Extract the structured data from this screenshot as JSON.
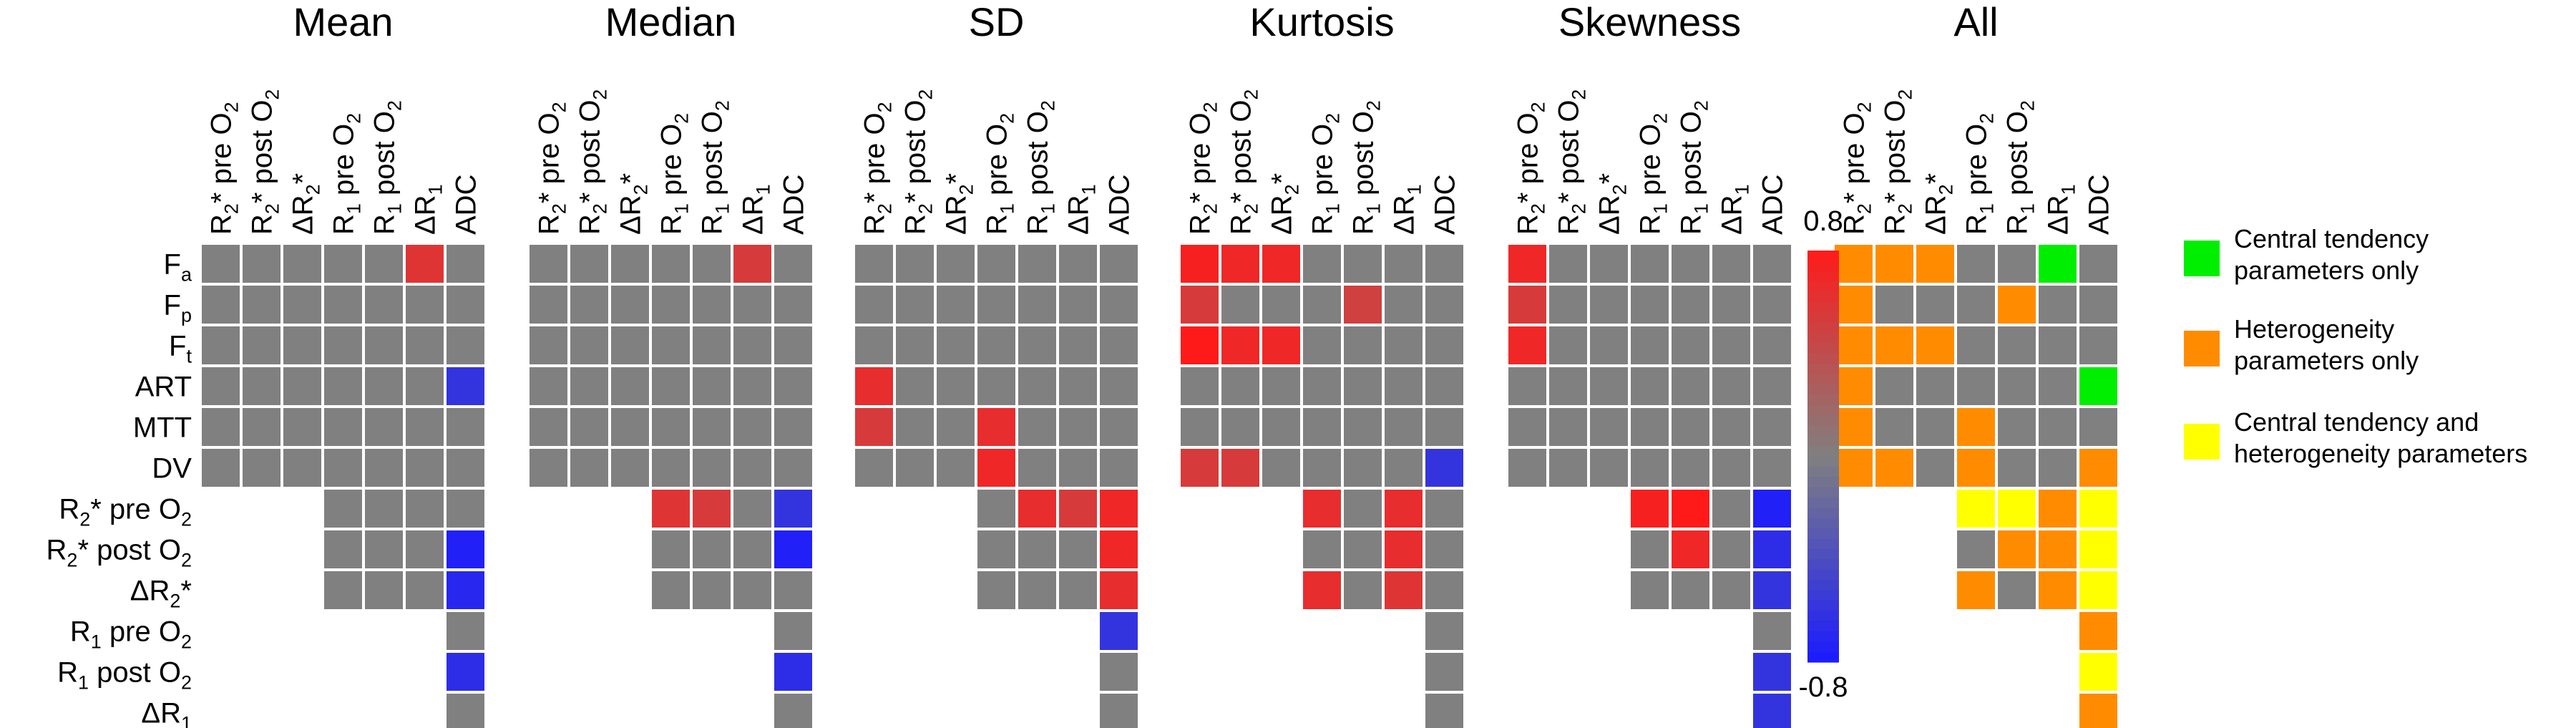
{
  "chart_data": {
    "type": "heatmap",
    "column_labels": [
      {
        "base": "R",
        "sub": "2",
        "suffix": "* pre O",
        "sub2": "2"
      },
      {
        "base": "R",
        "sub": "2",
        "suffix": "* post O",
        "sub2": "2"
      },
      {
        "base": "ΔR",
        "sub": "2",
        "suffix": "*",
        "sub2": ""
      },
      {
        "base": "R",
        "sub": "1",
        "suffix": " pre O",
        "sub2": "2"
      },
      {
        "base": "R",
        "sub": "1",
        "suffix": " post O",
        "sub2": "2"
      },
      {
        "base": "ΔR",
        "sub": "1",
        "suffix": "",
        "sub2": ""
      },
      {
        "base": "ADC",
        "sub": "",
        "suffix": "",
        "sub2": ""
      }
    ],
    "row_labels": [
      {
        "base": "F",
        "sub": "a",
        "suffix": "",
        "sub2": ""
      },
      {
        "base": "F",
        "sub": "p",
        "suffix": "",
        "sub2": ""
      },
      {
        "base": "F",
        "sub": "t",
        "suffix": "",
        "sub2": ""
      },
      {
        "base": "ART",
        "sub": "",
        "suffix": "",
        "sub2": ""
      },
      {
        "base": "MTT",
        "sub": "",
        "suffix": "",
        "sub2": ""
      },
      {
        "base": "DV",
        "sub": "",
        "suffix": "",
        "sub2": ""
      },
      {
        "base": "R",
        "sub": "2",
        "suffix": "* pre O",
        "sub2": "2"
      },
      {
        "base": "R",
        "sub": "2",
        "suffix": "* post O",
        "sub2": "2"
      },
      {
        "base": "ΔR",
        "sub": "2",
        "suffix": "*",
        "sub2": ""
      },
      {
        "base": "R",
        "sub": "1",
        "suffix": " pre O",
        "sub2": "2"
      },
      {
        "base": "R",
        "sub": "1",
        "suffix": " post O",
        "sub2": "2"
      },
      {
        "base": "ΔR",
        "sub": "1",
        "suffix": "",
        "sub2": ""
      }
    ],
    "panels": [
      {
        "title": "Mean",
        "values": [
          [
            0,
            0,
            0,
            0,
            0,
            0.6,
            0
          ],
          [
            0,
            0,
            0,
            0,
            0,
            0,
            0
          ],
          [
            0,
            0,
            0,
            0,
            0,
            0,
            0
          ],
          [
            0,
            0,
            0,
            0,
            0,
            0,
            -0.6
          ],
          [
            0,
            0,
            0,
            0,
            0,
            0,
            0
          ],
          [
            0,
            0,
            0,
            0,
            0,
            0,
            0
          ],
          [
            null,
            null,
            null,
            0,
            0,
            0,
            0
          ],
          [
            null,
            null,
            null,
            0,
            0,
            0,
            -0.75
          ],
          [
            null,
            null,
            null,
            0,
            0,
            0,
            -0.7
          ],
          [
            null,
            null,
            null,
            null,
            null,
            null,
            0
          ],
          [
            null,
            null,
            null,
            null,
            null,
            null,
            -0.65
          ],
          [
            null,
            null,
            null,
            null,
            null,
            null,
            0
          ]
        ]
      },
      {
        "title": "Median",
        "values": [
          [
            0,
            0,
            0,
            0,
            0,
            0.55,
            0
          ],
          [
            0,
            0,
            0,
            0,
            0,
            0,
            0
          ],
          [
            0,
            0,
            0,
            0,
            0,
            0,
            0
          ],
          [
            0,
            0,
            0,
            0,
            0,
            0,
            0
          ],
          [
            0,
            0,
            0,
            0,
            0,
            0,
            0
          ],
          [
            0,
            0,
            0,
            0,
            0,
            0,
            0
          ],
          [
            null,
            null,
            null,
            0.6,
            0.55,
            0,
            -0.6
          ],
          [
            null,
            null,
            null,
            0,
            0,
            0,
            -0.75
          ],
          [
            null,
            null,
            null,
            0,
            0,
            0,
            0
          ],
          [
            null,
            null,
            null,
            null,
            null,
            null,
            0
          ],
          [
            null,
            null,
            null,
            null,
            null,
            null,
            -0.65
          ],
          [
            null,
            null,
            null,
            null,
            null,
            null,
            0
          ]
        ]
      },
      {
        "title": "SD",
        "values": [
          [
            0,
            0,
            0,
            0,
            0,
            0,
            0
          ],
          [
            0,
            0,
            0,
            0,
            0,
            0,
            0
          ],
          [
            0,
            0,
            0,
            0,
            0,
            0,
            0
          ],
          [
            0.65,
            0,
            0,
            0,
            0,
            0,
            0
          ],
          [
            0.55,
            0,
            0,
            0.65,
            0,
            0,
            0
          ],
          [
            0,
            0,
            0,
            0.7,
            0,
            0,
            0
          ],
          [
            null,
            null,
            null,
            0,
            0.65,
            0.55,
            0.7
          ],
          [
            null,
            null,
            null,
            0,
            0,
            0,
            0.7
          ],
          [
            null,
            null,
            null,
            0,
            0,
            0,
            0.65
          ],
          [
            null,
            null,
            null,
            null,
            null,
            null,
            -0.6
          ],
          [
            null,
            null,
            null,
            null,
            null,
            null,
            0
          ],
          [
            null,
            null,
            null,
            null,
            null,
            null,
            0
          ]
        ]
      },
      {
        "title": "Kurtosis",
        "values": [
          [
            0.75,
            0.7,
            0.7,
            0,
            0,
            0,
            0
          ],
          [
            0.55,
            0,
            0,
            0,
            0.5,
            0,
            0
          ],
          [
            0.8,
            0.7,
            0.7,
            0,
            0,
            0,
            0
          ],
          [
            0,
            0,
            0,
            0,
            0,
            0,
            0
          ],
          [
            0,
            0,
            0,
            0,
            0,
            0,
            0
          ],
          [
            0.55,
            0.55,
            0,
            0,
            0,
            0,
            -0.6
          ],
          [
            null,
            null,
            null,
            0.65,
            0,
            0.65,
            0
          ],
          [
            null,
            null,
            null,
            0,
            0,
            0.65,
            0
          ],
          [
            null,
            null,
            null,
            0.65,
            0,
            0.6,
            0
          ],
          [
            null,
            null,
            null,
            null,
            null,
            null,
            0
          ],
          [
            null,
            null,
            null,
            null,
            null,
            null,
            0
          ],
          [
            null,
            null,
            null,
            null,
            null,
            null,
            0
          ]
        ]
      },
      {
        "title": "Skewness",
        "values": [
          [
            0.7,
            0,
            0,
            0,
            0,
            0,
            0
          ],
          [
            0.55,
            0,
            0,
            0,
            0,
            0,
            0
          ],
          [
            0.7,
            0,
            0,
            0,
            0,
            0,
            0
          ],
          [
            0,
            0,
            0,
            0,
            0,
            0,
            0
          ],
          [
            0,
            0,
            0,
            0,
            0,
            0,
            0
          ],
          [
            0,
            0,
            0,
            0,
            0,
            0,
            0
          ],
          [
            null,
            null,
            null,
            0.75,
            0.8,
            0,
            -0.75
          ],
          [
            null,
            null,
            null,
            0,
            0.7,
            0,
            -0.65
          ],
          [
            null,
            null,
            null,
            0,
            0,
            0,
            -0.6
          ],
          [
            null,
            null,
            null,
            null,
            null,
            null,
            0
          ],
          [
            null,
            null,
            null,
            null,
            null,
            null,
            -0.6
          ],
          [
            null,
            null,
            null,
            null,
            null,
            null,
            -0.6
          ]
        ]
      }
    ],
    "colorbar": {
      "min": -0.8,
      "max": 0.8,
      "max_label": "0.8",
      "min_label": "-0.8",
      "colors": {
        "negative": "#1a1aff",
        "zero": "#808080",
        "positive": "#ff1a1a"
      }
    },
    "all_panel": {
      "title": "All",
      "categories": [
        [
          0,
          1,
          1,
          0,
          0,
          0,
          0
        ],
        [
          1,
          0,
          0,
          0,
          1,
          0,
          0
        ],
        [
          1,
          1,
          1,
          0,
          0,
          0,
          0
        ],
        [
          0,
          0,
          0,
          0,
          0,
          0,
          0
        ],
        [
          0,
          0,
          0,
          0,
          0,
          0,
          0
        ],
        [
          1,
          1,
          0,
          0,
          0,
          0,
          0
        ],
        [
          null,
          null,
          null,
          0,
          0,
          0,
          0
        ],
        [
          null,
          null,
          null,
          0,
          0,
          0,
          0
        ],
        [
          null,
          null,
          null,
          0,
          0,
          0,
          0
        ],
        [
          null,
          null,
          null,
          null,
          null,
          null,
          0
        ],
        [
          null,
          null,
          null,
          null,
          null,
          null,
          0
        ],
        [
          null,
          null,
          null,
          null,
          null,
          null,
          0
        ]
      ],
      "categories_full": [
        [
          2,
          2,
          2,
          0,
          0,
          1,
          0
        ],
        [
          2,
          0,
          0,
          0,
          2,
          0,
          0
        ],
        [
          2,
          2,
          2,
          0,
          0,
          0,
          0
        ],
        [
          2,
          0,
          0,
          0,
          0,
          0,
          1
        ],
        [
          2,
          0,
          0,
          2,
          0,
          0,
          0
        ],
        [
          2,
          2,
          0,
          2,
          0,
          0,
          2
        ],
        [
          null,
          null,
          null,
          3,
          3,
          2,
          3
        ],
        [
          null,
          null,
          null,
          0,
          2,
          2,
          3
        ],
        [
          null,
          null,
          null,
          2,
          0,
          2,
          3
        ],
        [
          null,
          null,
          null,
          null,
          null,
          null,
          2
        ],
        [
          null,
          null,
          null,
          null,
          null,
          null,
          3
        ],
        [
          null,
          null,
          null,
          null,
          null,
          null,
          2
        ]
      ],
      "colors": {
        "none": "#808080",
        "central": "#00ee00",
        "heterogeneity": "#ff8c00",
        "both": "#ffff00"
      }
    },
    "legend": [
      {
        "color": "#00ee00",
        "lines": [
          "Central tendency",
          "parameters only"
        ]
      },
      {
        "color": "#ff8c00",
        "lines": [
          "Heterogeneity",
          "parameters only"
        ]
      },
      {
        "color": "#ffff00",
        "lines": [
          "Central tendency and",
          "heterogeneity parameters"
        ]
      }
    ]
  }
}
